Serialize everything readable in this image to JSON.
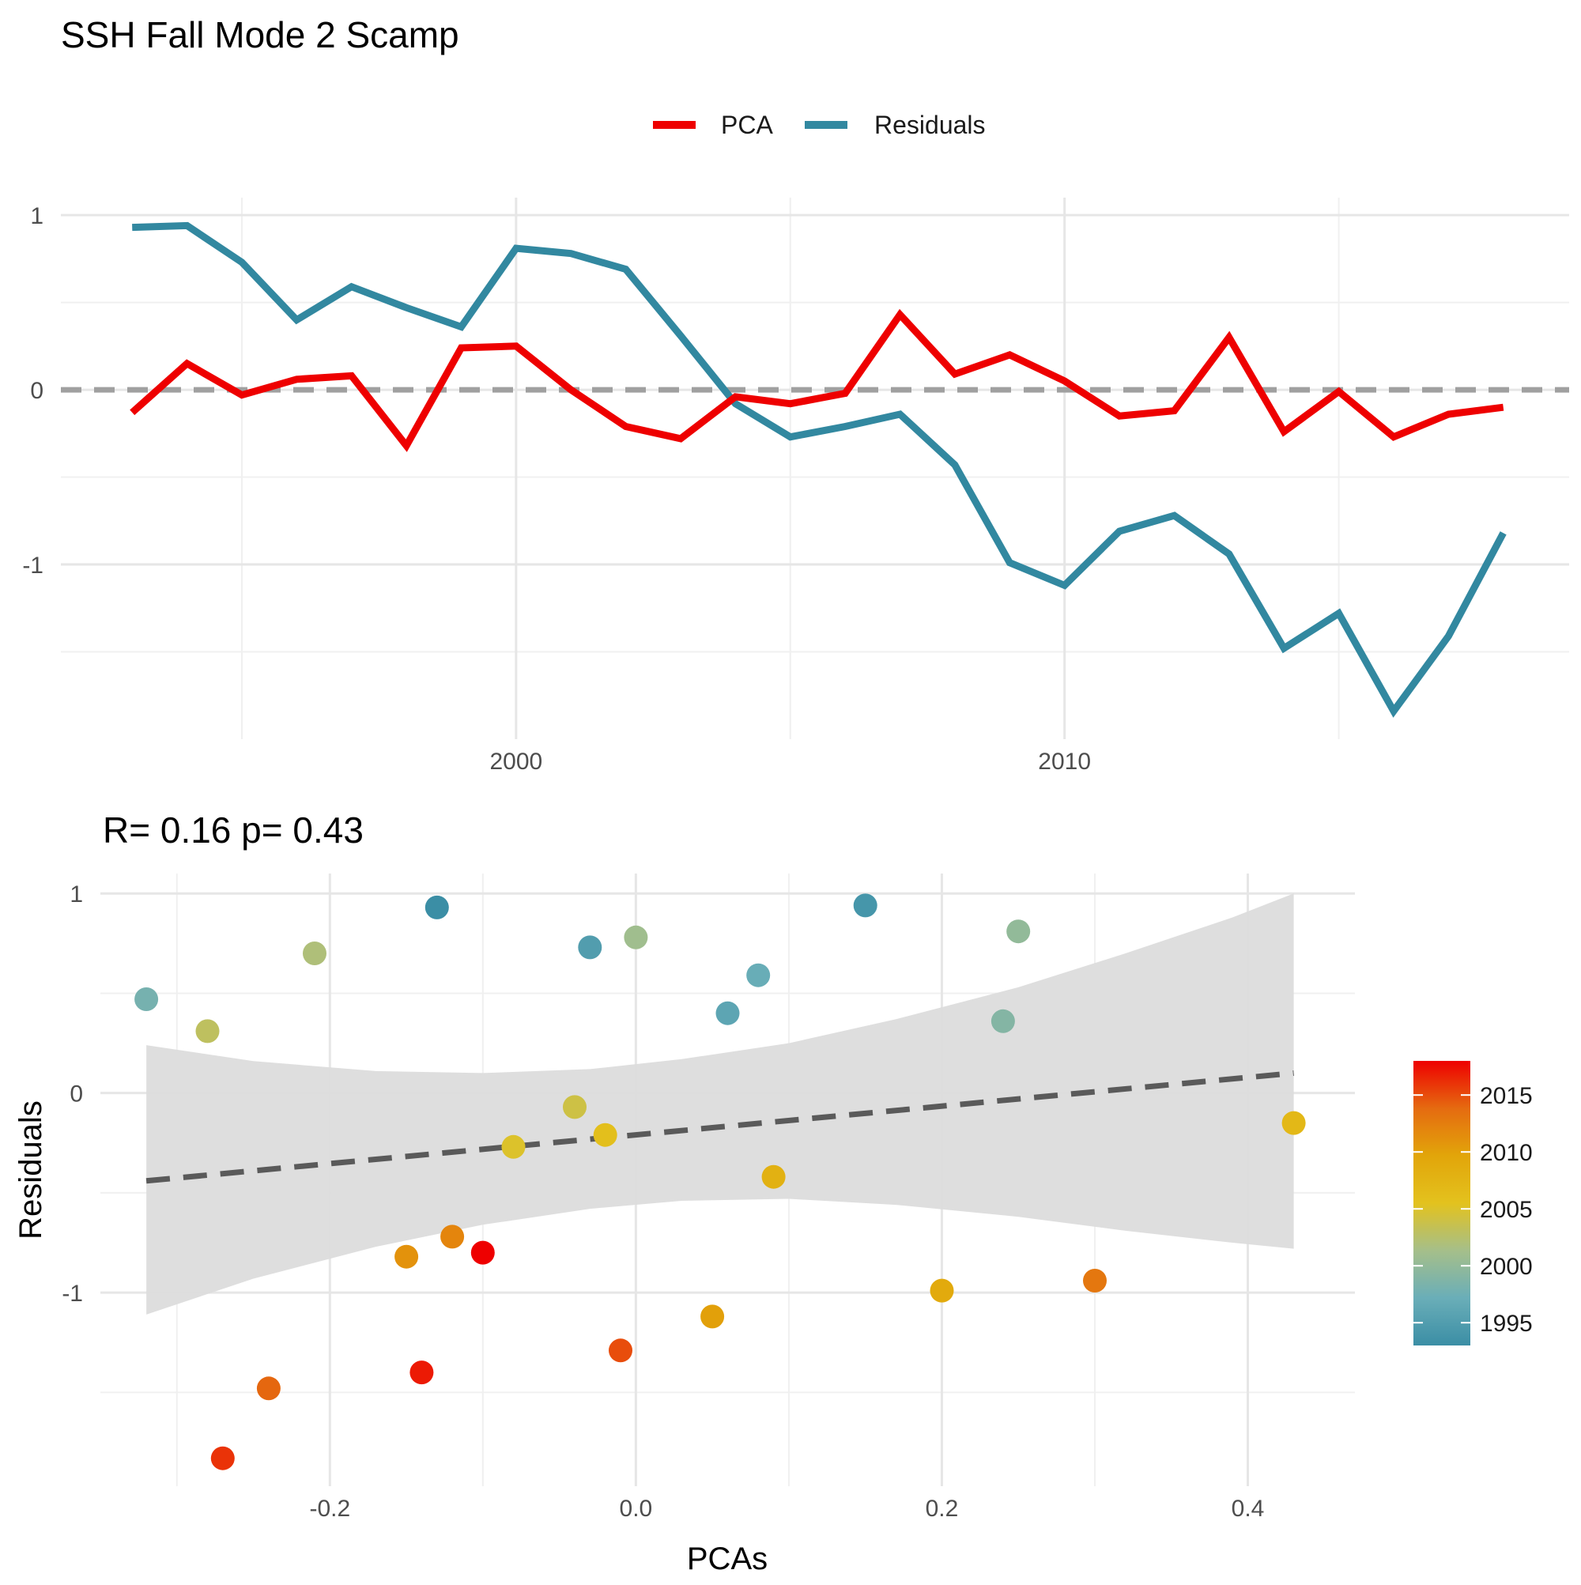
{
  "title": "SSH Fall Mode 2 Scamp",
  "colors": {
    "pca": "#ee0000",
    "residuals": "#3288a0",
    "zero_line": "#a0a0a0",
    "grid_major": "#e6e6e6",
    "grid_minor": "#f0f0f0",
    "ribbon": "#dcdcdc",
    "fit_line": "#5a5a5a",
    "colorbar_stops": [
      "#3b8ea5",
      "#6aaeb8",
      "#a5bf8a",
      "#e3c21e",
      "#e2a50a",
      "#e56b10",
      "#ee0000"
    ]
  },
  "chart_data": [
    {
      "type": "line",
      "legend": {
        "position": "top",
        "items": [
          {
            "label": "PCA",
            "color": "#ee0000"
          },
          {
            "label": "Residuals",
            "color": "#3288a0"
          }
        ]
      },
      "x": [
        1993,
        1994,
        1995,
        1996,
        1997,
        1998,
        1999,
        2000,
        2001,
        2002,
        2003,
        2004,
        2005,
        2006,
        2007,
        2008,
        2009,
        2010,
        2011,
        2012,
        2013,
        2014,
        2015,
        2016,
        2017,
        2018
      ],
      "x_ticks": [
        2000,
        2010
      ],
      "x_tick_labels": [
        "2000",
        "2010"
      ],
      "xlim": [
        1991.7,
        2019.2
      ],
      "y_ticks": [
        1,
        0,
        -1
      ],
      "y_tick_labels": [
        "1",
        "0",
        "-1"
      ],
      "ylim": [
        -2.0,
        1.1
      ],
      "grid": true,
      "reference_line": {
        "y": 0,
        "style": "dashed"
      },
      "series": [
        {
          "name": "PCA",
          "color": "#ee0000",
          "values": [
            -0.13,
            0.15,
            -0.03,
            0.06,
            0.08,
            -0.32,
            0.24,
            0.25,
            0.0,
            -0.21,
            -0.28,
            -0.04,
            -0.08,
            -0.02,
            0.43,
            0.09,
            0.2,
            0.05,
            -0.15,
            -0.12,
            0.3,
            -0.24,
            -0.01,
            -0.27,
            -0.14,
            -0.1
          ]
        },
        {
          "name": "Residuals",
          "color": "#3288a0",
          "values": [
            0.93,
            0.94,
            0.73,
            0.4,
            0.59,
            0.47,
            0.36,
            0.81,
            0.78,
            0.69,
            0.31,
            -0.08,
            -0.27,
            -0.21,
            -0.14,
            -0.43,
            -0.99,
            -1.12,
            -0.81,
            -0.72,
            -0.94,
            -1.48,
            -1.28,
            -1.84,
            -1.41,
            -0.82
          ]
        }
      ]
    },
    {
      "type": "scatter",
      "title": "R= 0.16  p= 0.43",
      "xlabel": "PCAs",
      "ylabel": "Residuals",
      "xlim": [
        -0.35,
        0.47
      ],
      "x_ticks": [
        -0.2,
        0.0,
        0.2,
        0.4
      ],
      "x_tick_labels": [
        "-0.2",
        "0.0",
        "0.2",
        "0.4"
      ],
      "y_ticks": [
        1,
        0,
        -1
      ],
      "y_tick_labels": [
        "1",
        "0",
        "-1"
      ],
      "ylim": [
        -1.97,
        1.1
      ],
      "grid": true,
      "colorbar": {
        "ticks": [
          2015,
          2010,
          2005,
          2000,
          1995
        ],
        "tick_labels": [
          "2015",
          "2010",
          "2005",
          "2000",
          "1995"
        ],
        "range": [
          1993,
          2018
        ]
      },
      "fit": {
        "style": "dashed",
        "x": [
          -0.32,
          0.43
        ],
        "y": [
          -0.44,
          0.1
        ],
        "ci_x": [
          -0.32,
          -0.25,
          -0.17,
          -0.1,
          -0.03,
          0.03,
          0.1,
          0.17,
          0.25,
          0.32,
          0.39,
          0.43
        ],
        "ci_upper": [
          0.24,
          0.16,
          0.11,
          0.1,
          0.12,
          0.17,
          0.25,
          0.37,
          0.53,
          0.7,
          0.88,
          1.0
        ],
        "ci_lower": [
          -1.11,
          -0.93,
          -0.77,
          -0.66,
          -0.58,
          -0.54,
          -0.53,
          -0.56,
          -0.62,
          -0.69,
          -0.75,
          -0.78
        ]
      },
      "points": [
        {
          "year": 1993,
          "x": -0.13,
          "y": 0.93
        },
        {
          "year": 1994,
          "x": 0.15,
          "y": 0.94
        },
        {
          "year": 1995,
          "x": -0.03,
          "y": 0.73
        },
        {
          "year": 1996,
          "x": 0.06,
          "y": 0.4
        },
        {
          "year": 1997,
          "x": 0.08,
          "y": 0.59
        },
        {
          "year": 1998,
          "x": -0.32,
          "y": 0.47
        },
        {
          "year": 1999,
          "x": 0.24,
          "y": 0.36
        },
        {
          "year": 2000,
          "x": 0.25,
          "y": 0.81
        },
        {
          "year": 2001,
          "x": 0.0,
          "y": 0.78
        },
        {
          "year": 2002,
          "x": -0.21,
          "y": 0.7
        },
        {
          "year": 2003,
          "x": -0.28,
          "y": 0.31
        },
        {
          "year": 2004,
          "x": -0.04,
          "y": -0.07
        },
        {
          "year": 2005,
          "x": -0.08,
          "y": -0.27
        },
        {
          "year": 2006,
          "x": -0.02,
          "y": -0.21
        },
        {
          "year": 2007,
          "x": 0.43,
          "y": -0.15
        },
        {
          "year": 2008,
          "x": 0.09,
          "y": -0.42
        },
        {
          "year": 2009,
          "x": 0.2,
          "y": -0.99
        },
        {
          "year": 2010,
          "x": 0.05,
          "y": -1.12
        },
        {
          "year": 2011,
          "x": -0.15,
          "y": -0.82
        },
        {
          "year": 2012,
          "x": -0.12,
          "y": -0.72
        },
        {
          "year": 2013,
          "x": 0.3,
          "y": -0.94
        },
        {
          "year": 2014,
          "x": -0.24,
          "y": -1.48
        },
        {
          "year": 2015,
          "x": -0.01,
          "y": -1.29
        },
        {
          "year": 2016,
          "x": -0.27,
          "y": -1.83
        },
        {
          "year": 2017,
          "x": -0.14,
          "y": -1.4
        },
        {
          "year": 2018,
          "x": -0.1,
          "y": -0.8
        }
      ]
    }
  ]
}
